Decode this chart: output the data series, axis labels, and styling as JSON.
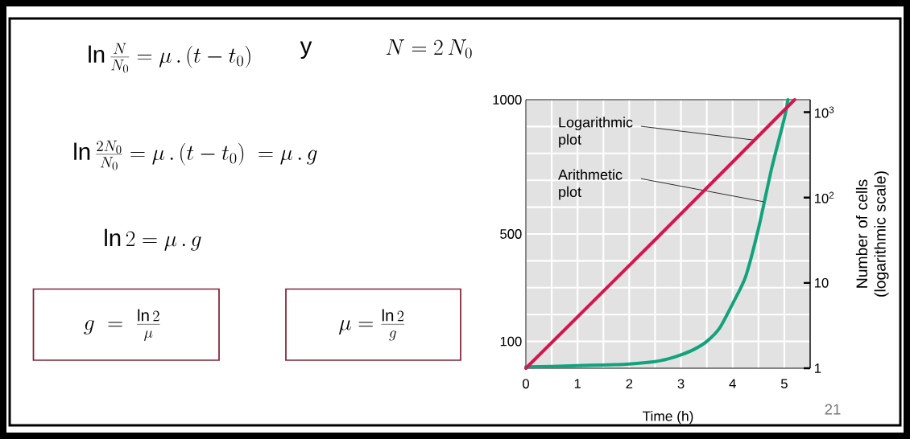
{
  "chart_data": {
    "type": "line",
    "xlabel": "Time (h)",
    "y2label": "Number of cells (logarithmic scale)",
    "xlim": [
      0,
      5.5
    ],
    "xticks": [
      0,
      {
        "value": 0.5,
        "label": null
      },
      1,
      {
        "value": 1.5,
        "label": null
      },
      2,
      {
        "value": 2.5,
        "label": null
      },
      3,
      {
        "value": 3.5,
        "label": null
      },
      4,
      {
        "value": 4.5,
        "label": null
      },
      5
    ],
    "ylim": [
      0,
      1000
    ],
    "yticks": [
      100,
      {
        "value": 200,
        "label": null
      },
      {
        "value": 300,
        "label": null
      },
      {
        "value": 400,
        "label": null
      },
      500,
      {
        "value": 600,
        "label": null
      },
      {
        "value": 700,
        "label": null
      },
      {
        "value": 800,
        "label": null
      },
      {
        "value": 900,
        "label": null
      },
      1000
    ],
    "y2lim": [
      1,
      1400
    ],
    "y2ticks": [
      1,
      10,
      {
        "value": 100,
        "label": "10$^{2}$"
      },
      {
        "value": 1000,
        "label": "10$^{3}$"
      }
    ],
    "log": "y2",
    "grid": true,
    "series": [
      {
        "color": "#12a37c",
        "x": [
          0,
          0.5,
          1,
          1.5,
          2,
          2.5,
          2.75,
          3,
          3.25,
          3.5,
          3.75,
          4,
          4.25,
          4.5,
          4.75,
          5,
          5.07
        ],
        "values": [
          5,
          7,
          10,
          12,
          16,
          25,
          35,
          50,
          70,
          100,
          150,
          240,
          340,
          520,
          740,
          930,
          1000
        ]
      },
      {
        "color": "#d3164f",
        "axis": "y2",
        "x": [
          0,
          2.5,
          5.2
        ],
        "values": [
          1,
          32,
          1400
        ]
      }
    ],
    "annotations": [
      "\\ln \\frac{N}{N_0} = \\mu \\,.\\, (t - t_0)",
      "y",
      "N = 2\\,N_0",
      "\\ln \\frac{2N_0}{N_0} = \\mu \\,.\\, (t - t_0) \\;= \\mu \\,.\\, g",
      "\\ln 2 = \\mu \\,.\\, g",
      "g \\;=\\; \\frac{\\ln 2}{\\mu}",
      "\\mu = \\frac{\\ln 2}{g}",
      {
        "text": "Logarithmic plot",
        "x": 4.4,
        "y": 850
      },
      {
        "text": "Arithmetic plot",
        "x": 4.6,
        "y": 620
      },
      "21"
    ]
  }
}
